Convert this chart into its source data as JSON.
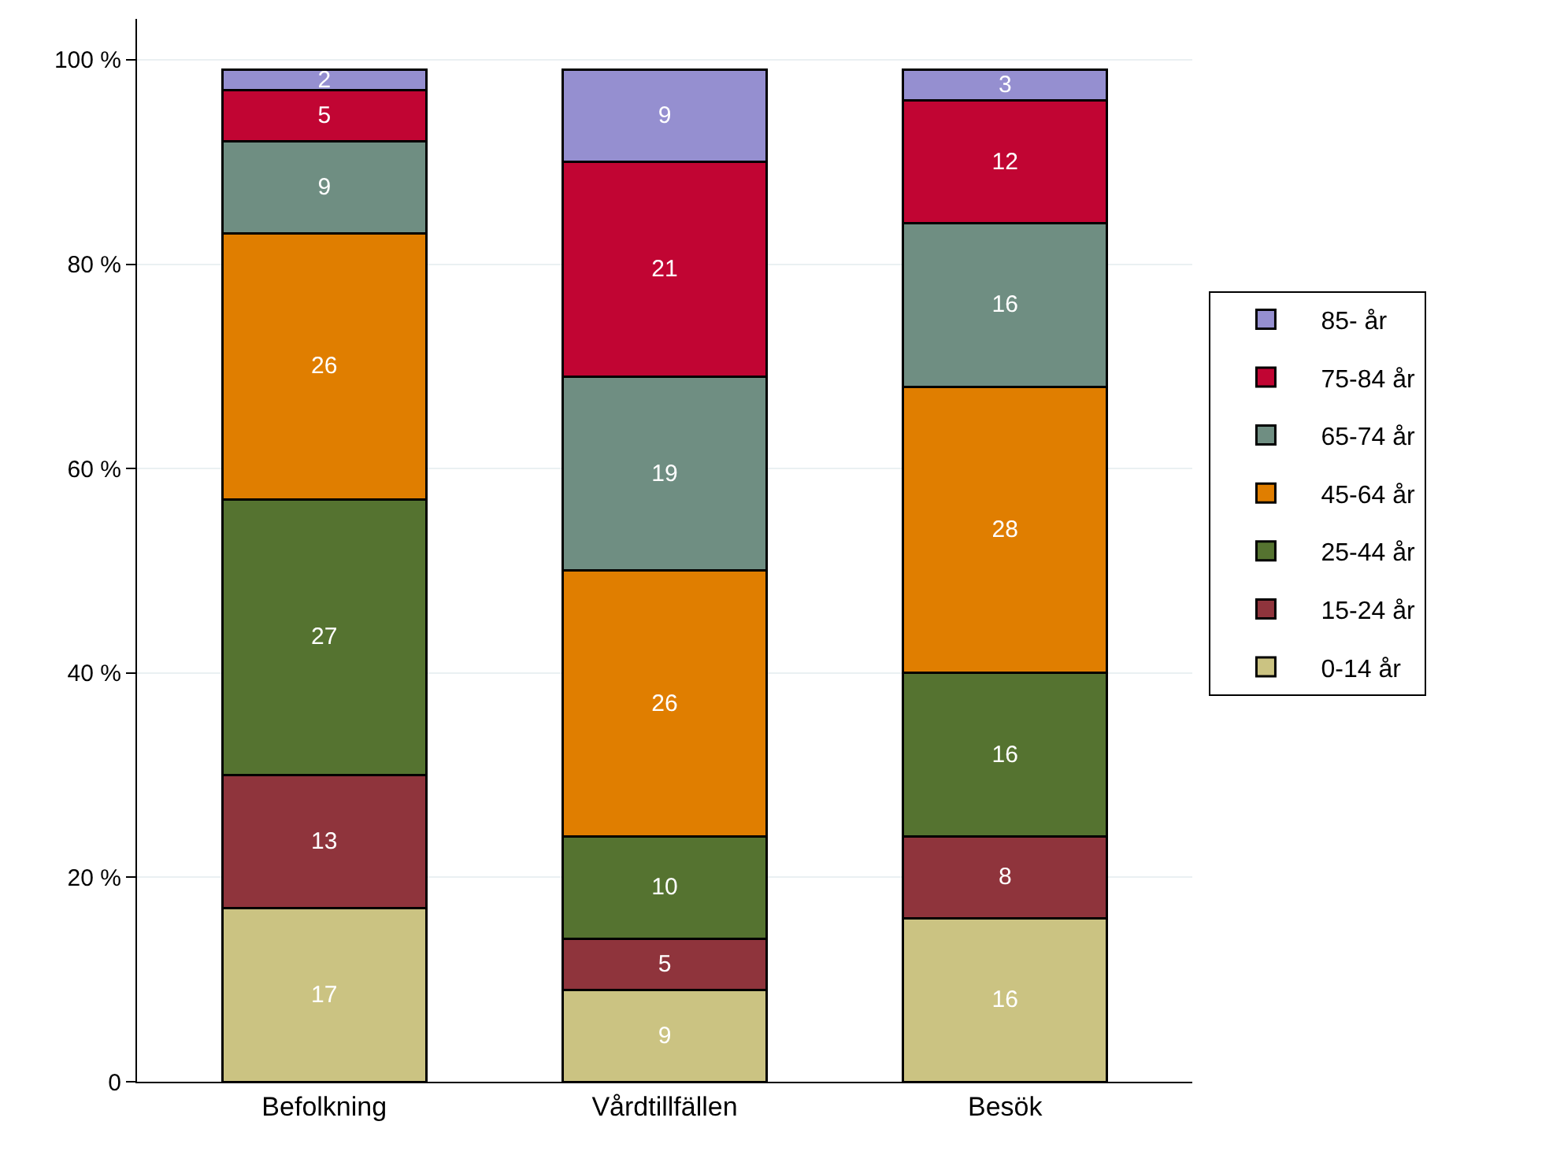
{
  "chart_data": {
    "type": "bar",
    "stacked": true,
    "categories": [
      "Befolkning",
      "Vårdtillfällen",
      "Besök"
    ],
    "series": [
      {
        "name": "0-14 år",
        "color": "#cbc382",
        "values": [
          17,
          9,
          16
        ]
      },
      {
        "name": "15-24 år",
        "color": "#8f343c",
        "values": [
          13,
          5,
          8
        ]
      },
      {
        "name": "25-44 år",
        "color": "#557330",
        "values": [
          27,
          10,
          16
        ]
      },
      {
        "name": "45-64 år",
        "color": "#e07e00",
        "values": [
          26,
          26,
          28
        ]
      },
      {
        "name": "65-74 år",
        "color": "#6f8e82",
        "values": [
          9,
          19,
          16
        ]
      },
      {
        "name": "75-84 år",
        "color": "#c10533",
        "values": [
          5,
          21,
          12
        ]
      },
      {
        "name": "85- år",
        "color": "#958fd0",
        "values": [
          2,
          9,
          3
        ]
      }
    ],
    "ylim": [
      0,
      104
    ],
    "yticks": [
      0,
      {
        "value": 20,
        "label": "20 %"
      },
      {
        "value": 40,
        "label": "40 %"
      },
      {
        "value": 60,
        "label": "60 %"
      },
      {
        "value": 80,
        "label": "80 %"
      },
      {
        "value": 100,
        "label": "100 %"
      }
    ],
    "grid": "y",
    "legend": "right",
    "data_labels": true
  }
}
